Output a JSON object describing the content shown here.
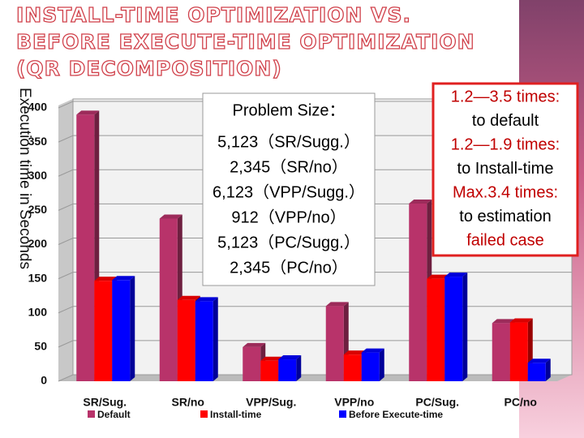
{
  "chart_data": {
    "type": "bar",
    "title": [
      "INSTALL-TIME OPTIMIZATION  VS.",
      "BEFORE EXECUTE-TIME OPTIMIZATION",
      "(QR DECOMPOSITION)"
    ],
    "y_label": "Execution time in Seconds",
    "categories": [
      "SR/Sug.",
      "SR/no",
      "VPP/Sug.",
      "VPP/no",
      "PC/Sug.",
      "PC/no"
    ],
    "series": [
      {
        "name": "Default",
        "color": "#b8336a",
        "values": [
          390,
          238,
          50,
          110,
          260,
          85
        ]
      },
      {
        "name": "Install-time",
        "color": "#ff0000",
        "values": [
          147,
          119,
          30,
          39,
          150,
          86
        ]
      },
      {
        "name": "Before Execute-time",
        "color": "#0000ff",
        "values": [
          148,
          117,
          32,
          42,
          153,
          27
        ]
      }
    ],
    "ylim": [
      0,
      400
    ],
    "yticks": [
      0,
      50,
      100,
      150,
      200,
      250,
      300,
      350,
      400
    ],
    "grid": true,
    "annotations": [
      {
        "lines": [
          "Problem Size：",
          "5,123（SR/Sugg.）",
          "2,345（SR/no）",
          "6,123（VPP/Sugg.）",
          "912（VPP/no）",
          "5,123（PC/Sugg.）",
          "2,345（PC/no）"
        ],
        "color": "#000000",
        "border": "#999999"
      },
      {
        "lines": [
          "1.2—3.5 times:",
          "to default",
          "1.2—1.9 times:",
          "to Install-time",
          "Max.3.4 times:",
          "to estimation",
          "failed case"
        ],
        "color": "#000000",
        "highlight": "#c00000",
        "border": "#e02020"
      }
    ]
  }
}
